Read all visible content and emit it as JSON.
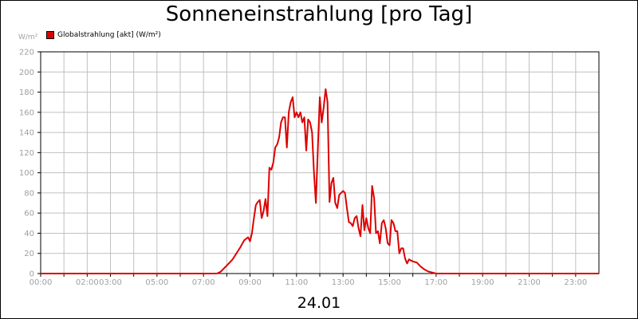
{
  "title": "Sonneneinstrahlung [pro Tag]",
  "unit_label": "W/m²",
  "date_label": "24.01",
  "colors": {
    "series": "#dd0000",
    "grid": "#c0c0c0",
    "tick_text": "#a0a0a0",
    "axis": "#000000"
  },
  "chart_data": {
    "type": "line",
    "title": "Sonneneinstrahlung [pro Tag]",
    "xlabel": "24.01",
    "ylabel": "W/m²",
    "xlim": [
      "00:00",
      "24:00"
    ],
    "ylim": [
      0,
      220
    ],
    "grid": true,
    "legend_position": "top-left",
    "x_tick_labels": [
      "00:00",
      "",
      "02:00",
      "03:00",
      "",
      "05:00",
      "",
      "07:00",
      "",
      "09:00",
      "",
      "11:00",
      "",
      "13:00",
      "",
      "15:00",
      "",
      "17:00",
      "",
      "19:00",
      "",
      "21:00",
      "",
      "23:00"
    ],
    "y_tick_labels": [
      "0",
      "20",
      "40",
      "60",
      "80",
      "100",
      "120",
      "140",
      "160",
      "180",
      "200",
      "220"
    ],
    "series": [
      {
        "name": "Globalstrahlung [akt] (W/m²)",
        "color": "#dd0000",
        "points": [
          [
            "00:00",
            0
          ],
          [
            "07:35",
            0
          ],
          [
            "07:45",
            2
          ],
          [
            "07:55",
            6
          ],
          [
            "08:05",
            10
          ],
          [
            "08:15",
            14
          ],
          [
            "08:25",
            20
          ],
          [
            "08:35",
            26
          ],
          [
            "08:45",
            33
          ],
          [
            "08:55",
            36
          ],
          [
            "09:00",
            32
          ],
          [
            "09:05",
            40
          ],
          [
            "09:10",
            55
          ],
          [
            "09:15",
            68
          ],
          [
            "09:20",
            71
          ],
          [
            "09:25",
            73
          ],
          [
            "09:30",
            55
          ],
          [
            "09:35",
            62
          ],
          [
            "09:40",
            74
          ],
          [
            "09:45",
            57
          ],
          [
            "09:50",
            105
          ],
          [
            "09:55",
            103
          ],
          [
            "10:00",
            110
          ],
          [
            "10:05",
            125
          ],
          [
            "10:10",
            128
          ],
          [
            "10:15",
            135
          ],
          [
            "10:20",
            150
          ],
          [
            "10:25",
            155
          ],
          [
            "10:30",
            155
          ],
          [
            "10:35",
            125
          ],
          [
            "10:40",
            160
          ],
          [
            "10:45",
            170
          ],
          [
            "10:50",
            175
          ],
          [
            "10:55",
            155
          ],
          [
            "11:00",
            160
          ],
          [
            "11:05",
            155
          ],
          [
            "11:10",
            160
          ],
          [
            "11:15",
            150
          ],
          [
            "11:20",
            155
          ],
          [
            "11:25",
            122
          ],
          [
            "11:30",
            153
          ],
          [
            "11:35",
            150
          ],
          [
            "11:40",
            140
          ],
          [
            "11:45",
            100
          ],
          [
            "11:50",
            70
          ],
          [
            "11:55",
            125
          ],
          [
            "12:00",
            175
          ],
          [
            "12:05",
            150
          ],
          [
            "12:10",
            165
          ],
          [
            "12:15",
            183
          ],
          [
            "12:20",
            170
          ],
          [
            "12:25",
            71
          ],
          [
            "12:30",
            90
          ],
          [
            "12:35",
            95
          ],
          [
            "12:40",
            70
          ],
          [
            "12:45",
            65
          ],
          [
            "12:50",
            78
          ],
          [
            "12:55",
            80
          ],
          [
            "13:00",
            82
          ],
          [
            "13:05",
            80
          ],
          [
            "13:10",
            65
          ],
          [
            "13:15",
            51
          ],
          [
            "13:20",
            50
          ],
          [
            "13:25",
            47
          ],
          [
            "13:30",
            55
          ],
          [
            "13:35",
            57
          ],
          [
            "13:40",
            45
          ],
          [
            "13:45",
            37
          ],
          [
            "13:50",
            68
          ],
          [
            "13:55",
            43
          ],
          [
            "14:00",
            55
          ],
          [
            "14:05",
            45
          ],
          [
            "14:10",
            40
          ],
          [
            "14:15",
            87
          ],
          [
            "14:20",
            75
          ],
          [
            "14:25",
            40
          ],
          [
            "14:30",
            42
          ],
          [
            "14:35",
            30
          ],
          [
            "14:40",
            50
          ],
          [
            "14:45",
            53
          ],
          [
            "14:50",
            45
          ],
          [
            "14:55",
            30
          ],
          [
            "15:00",
            28
          ],
          [
            "15:05",
            53
          ],
          [
            "15:10",
            50
          ],
          [
            "15:15",
            42
          ],
          [
            "15:20",
            42
          ],
          [
            "15:25",
            20
          ],
          [
            "15:30",
            25
          ],
          [
            "15:35",
            25
          ],
          [
            "15:40",
            15
          ],
          [
            "15:45",
            10
          ],
          [
            "15:50",
            14
          ],
          [
            "16:00",
            12
          ],
          [
            "16:10",
            11
          ],
          [
            "16:20",
            7
          ],
          [
            "16:30",
            4
          ],
          [
            "16:40",
            2
          ],
          [
            "16:50",
            1
          ],
          [
            "17:00",
            0
          ],
          [
            "24:00",
            0
          ]
        ]
      }
    ]
  }
}
